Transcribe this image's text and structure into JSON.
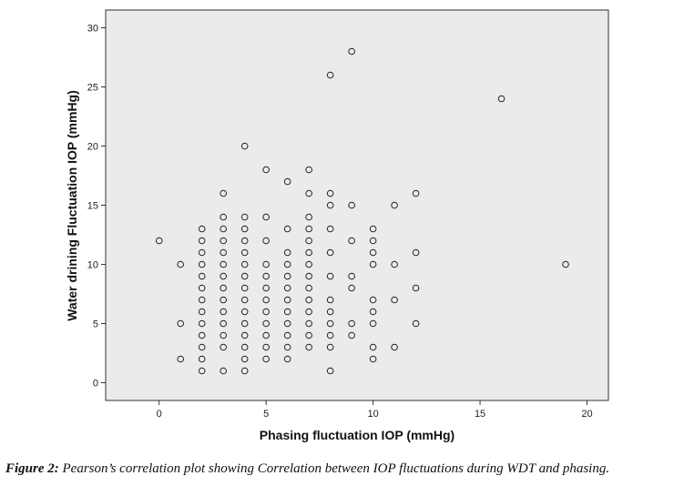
{
  "chart_data": {
    "type": "scatter",
    "xlabel": "Phasing fluctuation IOP (mmHg)",
    "ylabel": "Water drining Fluctuation IOP (mmHg)",
    "xlim": [
      -2.5,
      21.0
    ],
    "ylim": [
      -1.5,
      31.5
    ],
    "xticks": [
      "0",
      "5",
      "10",
      "15",
      "20"
    ],
    "yticks": [
      "0",
      "5",
      "10",
      "15",
      "20",
      "25",
      "30"
    ],
    "grid": false,
    "marker": "open-circle",
    "colors": {
      "plot_background": "#ebebeb",
      "marker_stroke": "#222222",
      "frame": "#333333"
    },
    "points": [
      [
        0,
        12
      ],
      [
        1,
        10
      ],
      [
        1,
        5
      ],
      [
        1,
        2
      ],
      [
        2,
        13
      ],
      [
        2,
        12
      ],
      [
        2,
        11
      ],
      [
        2,
        10
      ],
      [
        2,
        9
      ],
      [
        2,
        8
      ],
      [
        2,
        7
      ],
      [
        2,
        6
      ],
      [
        2,
        5
      ],
      [
        2,
        4
      ],
      [
        2,
        3
      ],
      [
        2,
        2
      ],
      [
        2,
        1
      ],
      [
        3,
        16
      ],
      [
        3,
        14
      ],
      [
        3,
        13
      ],
      [
        3,
        12
      ],
      [
        3,
        11
      ],
      [
        3,
        10
      ],
      [
        3,
        9
      ],
      [
        3,
        8
      ],
      [
        3,
        7
      ],
      [
        3,
        6
      ],
      [
        3,
        5
      ],
      [
        3,
        4
      ],
      [
        3,
        3
      ],
      [
        3,
        1
      ],
      [
        4,
        20
      ],
      [
        4,
        14
      ],
      [
        4,
        13
      ],
      [
        4,
        12
      ],
      [
        4,
        11
      ],
      [
        4,
        10
      ],
      [
        4,
        9
      ],
      [
        4,
        8
      ],
      [
        4,
        7
      ],
      [
        4,
        6
      ],
      [
        4,
        5
      ],
      [
        4,
        4
      ],
      [
        4,
        3
      ],
      [
        4,
        2
      ],
      [
        4,
        1
      ],
      [
        5,
        18
      ],
      [
        5,
        14
      ],
      [
        5,
        12
      ],
      [
        5,
        10
      ],
      [
        5,
        9
      ],
      [
        5,
        8
      ],
      [
        5,
        7
      ],
      [
        5,
        6
      ],
      [
        5,
        5
      ],
      [
        5,
        4
      ],
      [
        5,
        3
      ],
      [
        5,
        2
      ],
      [
        6,
        17
      ],
      [
        6,
        13
      ],
      [
        6,
        11
      ],
      [
        6,
        10
      ],
      [
        6,
        9
      ],
      [
        6,
        8
      ],
      [
        6,
        7
      ],
      [
        6,
        6
      ],
      [
        6,
        5
      ],
      [
        6,
        4
      ],
      [
        6,
        3
      ],
      [
        6,
        2
      ],
      [
        7,
        18
      ],
      [
        7,
        16
      ],
      [
        7,
        14
      ],
      [
        7,
        13
      ],
      [
        7,
        12
      ],
      [
        7,
        11
      ],
      [
        7,
        10
      ],
      [
        7,
        9
      ],
      [
        7,
        8
      ],
      [
        7,
        7
      ],
      [
        7,
        6
      ],
      [
        7,
        5
      ],
      [
        7,
        4
      ],
      [
        7,
        3
      ],
      [
        8,
        26
      ],
      [
        8,
        16
      ],
      [
        8,
        15
      ],
      [
        8,
        13
      ],
      [
        8,
        11
      ],
      [
        8,
        9
      ],
      [
        8,
        7
      ],
      [
        8,
        6
      ],
      [
        8,
        5
      ],
      [
        8,
        4
      ],
      [
        8,
        3
      ],
      [
        8,
        1
      ],
      [
        9,
        28
      ],
      [
        9,
        15
      ],
      [
        9,
        12
      ],
      [
        9,
        9
      ],
      [
        9,
        8
      ],
      [
        9,
        5
      ],
      [
        9,
        4
      ],
      [
        10,
        13
      ],
      [
        10,
        12
      ],
      [
        10,
        11
      ],
      [
        10,
        10
      ],
      [
        10,
        7
      ],
      [
        10,
        6
      ],
      [
        10,
        5
      ],
      [
        10,
        3
      ],
      [
        10,
        2
      ],
      [
        11,
        15
      ],
      [
        11,
        10
      ],
      [
        11,
        7
      ],
      [
        11,
        3
      ],
      [
        12,
        16
      ],
      [
        12,
        11
      ],
      [
        12,
        8
      ],
      [
        12,
        5
      ],
      [
        16,
        24
      ],
      [
        19,
        10
      ]
    ]
  },
  "caption": {
    "label": "Figure 2:",
    "text": " Pearson’s correlation plot showing Correlation between IOP fluctuations during WDT and phasing."
  }
}
